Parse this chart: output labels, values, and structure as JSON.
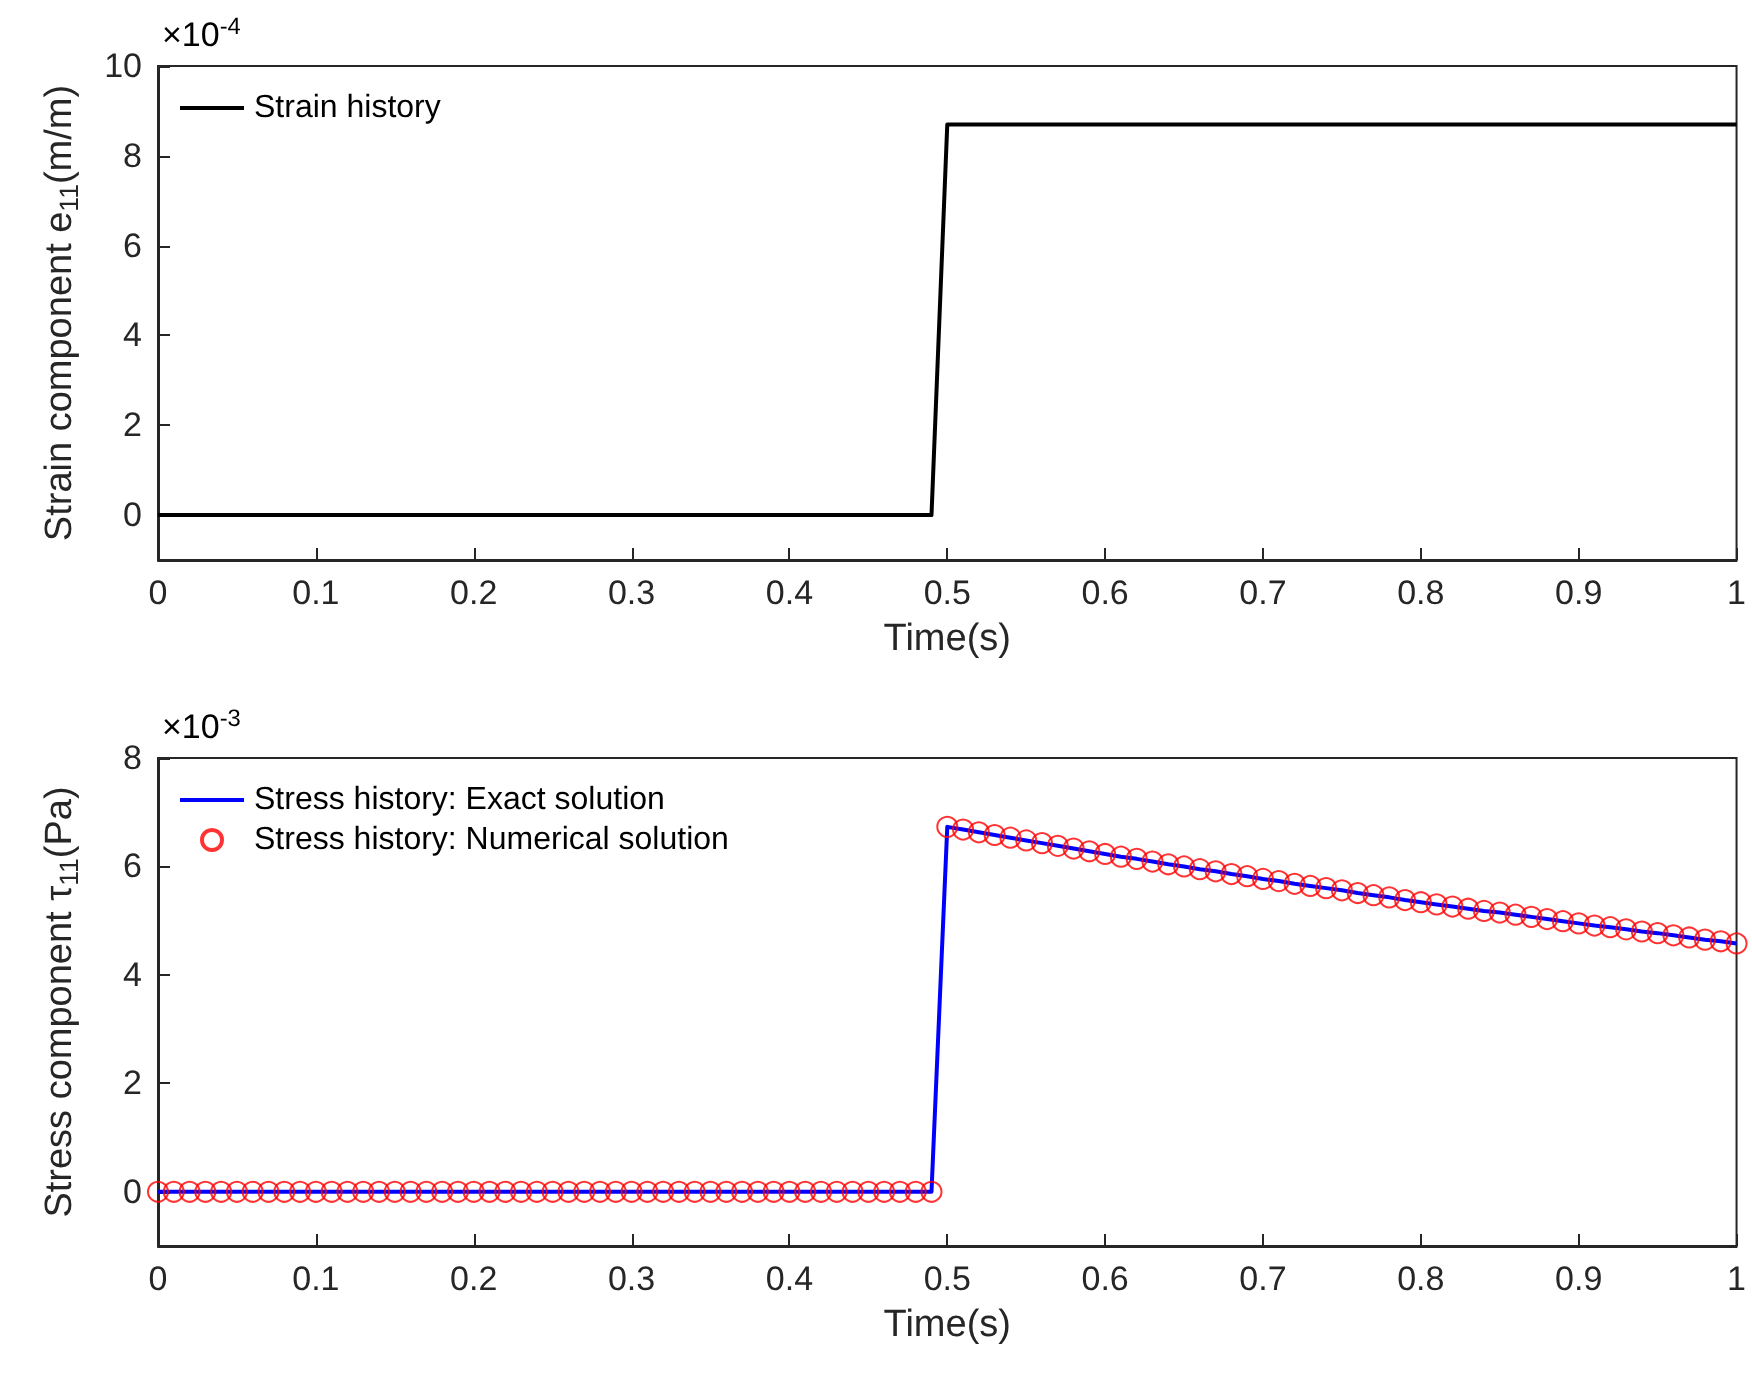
{
  "chart_data": [
    {
      "type": "line",
      "xlabel": "Time(s)",
      "ylabel": "Strain component e$_{11}$(m/m)",
      "annotations": [
        "×10$^{-4}$"
      ],
      "xlim": [
        0,
        1
      ],
      "xticks": [
        0,
        0.1,
        0.2,
        0.3,
        0.4,
        0.5,
        0.6,
        0.7,
        0.8,
        0.9,
        1
      ],
      "ylim": [
        -1,
        10
      ],
      "yticks": [
        0,
        2,
        4,
        6,
        8,
        10
      ],
      "legend": "top left",
      "grid": false,
      "series": [
        {
          "name": "Strain history",
          "color": "#000000",
          "marker": "none",
          "x": [
            0,
            0.49,
            0.5,
            1
          ],
          "values": [
            0,
            0,
            8.7,
            8.7
          ]
        }
      ]
    },
    {
      "type": "line",
      "xlabel": "Time(s)",
      "ylabel": "Stress component τ$_{11}$(Pa)",
      "annotations": [
        "×10$^{-3}$"
      ],
      "xlim": [
        0,
        1
      ],
      "xticks": [
        0,
        0.1,
        0.2,
        0.3,
        0.4,
        0.5,
        0.6,
        0.7,
        0.8,
        0.9,
        1
      ],
      "ylim": [
        -1,
        8
      ],
      "yticks": [
        0,
        2,
        4,
        6,
        8
      ],
      "legend": "top left",
      "grid": false,
      "series": [
        {
          "name": "Stress history: Exact solution",
          "color": "#0000ff",
          "marker": "none",
          "x": [
            0,
            0.49,
            0.5,
            0.51,
            0.52,
            0.53,
            0.54,
            0.55,
            0.56,
            0.57,
            0.58,
            0.59,
            0.6,
            0.61,
            0.62,
            0.63,
            0.64,
            0.65,
            0.66,
            0.67,
            0.68,
            0.69,
            0.7,
            0.71,
            0.72,
            0.73,
            0.74,
            0.75,
            0.76,
            0.77,
            0.78,
            0.79,
            0.8,
            0.81,
            0.82,
            0.83,
            0.84,
            0.85,
            0.86,
            0.87,
            0.88,
            0.89,
            0.9,
            0.91,
            0.92,
            0.93,
            0.94,
            0.95,
            0.96,
            0.97,
            0.98,
            0.99,
            1
          ],
          "values": [
            0,
            0,
            6.73,
            6.68,
            6.63,
            6.58,
            6.53,
            6.48,
            6.43,
            6.38,
            6.33,
            6.28,
            6.23,
            6.18,
            6.14,
            6.09,
            6.04,
            6.0,
            5.95,
            5.91,
            5.86,
            5.82,
            5.77,
            5.73,
            5.68,
            5.64,
            5.6,
            5.56,
            5.51,
            5.47,
            5.43,
            5.38,
            5.34,
            5.3,
            5.26,
            5.22,
            5.18,
            5.15,
            5.11,
            5.07,
            5.03,
            4.99,
            4.95,
            4.91,
            4.88,
            4.84,
            4.8,
            4.77,
            4.73,
            4.69,
            4.65,
            4.62,
            4.58
          ]
        },
        {
          "name": "Stress history: Numerical solution",
          "color": "#ff0000",
          "type": "scatter",
          "marker": "circle",
          "x": [
            0,
            0.01,
            0.02,
            0.03,
            0.04,
            0.05,
            0.06,
            0.07,
            0.08,
            0.09,
            0.1,
            0.11,
            0.12,
            0.13,
            0.14,
            0.15,
            0.16,
            0.17,
            0.18,
            0.19,
            0.2,
            0.21,
            0.22,
            0.23,
            0.24,
            0.25,
            0.26,
            0.27,
            0.28,
            0.29,
            0.3,
            0.31,
            0.32,
            0.33,
            0.34,
            0.35,
            0.36,
            0.37,
            0.38,
            0.39,
            0.4,
            0.41,
            0.42,
            0.43,
            0.44,
            0.45,
            0.46,
            0.47,
            0.48,
            0.49,
            0.5,
            0.51,
            0.52,
            0.53,
            0.54,
            0.55,
            0.56,
            0.57,
            0.58,
            0.59,
            0.6,
            0.61,
            0.62,
            0.63,
            0.64,
            0.65,
            0.66,
            0.67,
            0.68,
            0.69,
            0.7,
            0.71,
            0.72,
            0.73,
            0.74,
            0.75,
            0.76,
            0.77,
            0.78,
            0.79,
            0.8,
            0.81,
            0.82,
            0.83,
            0.84,
            0.85,
            0.86,
            0.87,
            0.88,
            0.89,
            0.9,
            0.91,
            0.92,
            0.93,
            0.94,
            0.95,
            0.96,
            0.97,
            0.98,
            0.99,
            1
          ],
          "values": [
            0,
            0,
            0,
            0,
            0,
            0,
            0,
            0,
            0,
            0,
            0,
            0,
            0,
            0,
            0,
            0,
            0,
            0,
            0,
            0,
            0,
            0,
            0,
            0,
            0,
            0,
            0,
            0,
            0,
            0,
            0,
            0,
            0,
            0,
            0,
            0,
            0,
            0,
            0,
            0,
            0,
            0,
            0,
            0,
            0,
            0,
            0,
            0,
            0,
            0,
            6.73,
            6.68,
            6.63,
            6.58,
            6.53,
            6.48,
            6.43,
            6.38,
            6.33,
            6.28,
            6.23,
            6.18,
            6.14,
            6.09,
            6.04,
            6.0,
            5.95,
            5.91,
            5.86,
            5.82,
            5.77,
            5.73,
            5.68,
            5.64,
            5.6,
            5.56,
            5.51,
            5.47,
            5.43,
            5.38,
            5.34,
            5.3,
            5.26,
            5.22,
            5.18,
            5.15,
            5.11,
            5.07,
            5.03,
            4.99,
            4.95,
            4.91,
            4.88,
            4.84,
            4.8,
            4.77,
            4.73,
            4.69,
            4.65,
            4.62,
            4.58
          ]
        }
      ]
    }
  ]
}
